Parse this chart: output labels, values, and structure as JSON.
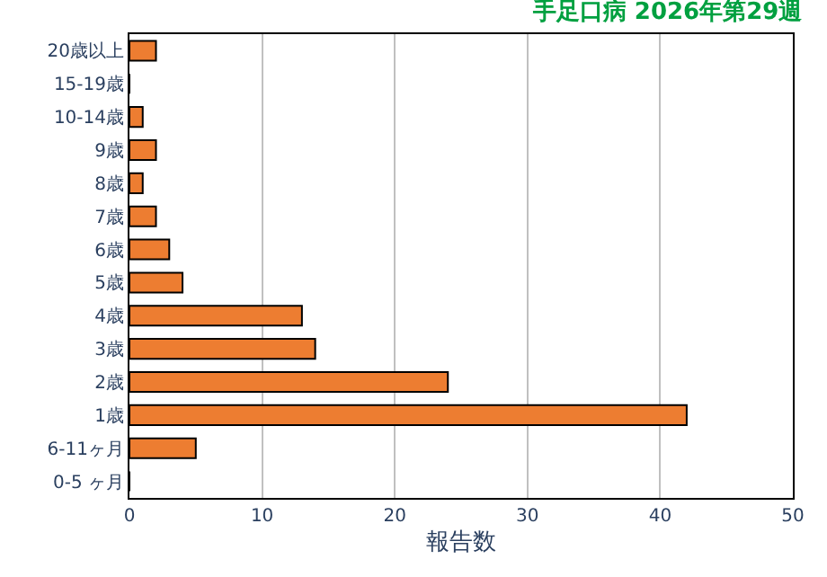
{
  "chart_data": {
    "type": "bar",
    "orientation": "horizontal",
    "title": "手足口病 2026年第29週",
    "xlabel": "報告数",
    "categories": [
      "20歳以上",
      "15-19歳",
      "10-14歳",
      "9歳",
      "8歳",
      "7歳",
      "6歳",
      "5歳",
      "4歳",
      "3歳",
      "2歳",
      "1歳",
      "6-11ヶ月",
      "0-5 ヶ月"
    ],
    "values": [
      2,
      0,
      1,
      2,
      1,
      2,
      3,
      4,
      13,
      14,
      24,
      42,
      5,
      0
    ],
    "color": "#ed7d31",
    "xlim": [
      0,
      50
    ],
    "xticks": [
      0,
      10,
      20,
      30,
      40,
      50
    ],
    "grid": "x",
    "legend": false
  }
}
